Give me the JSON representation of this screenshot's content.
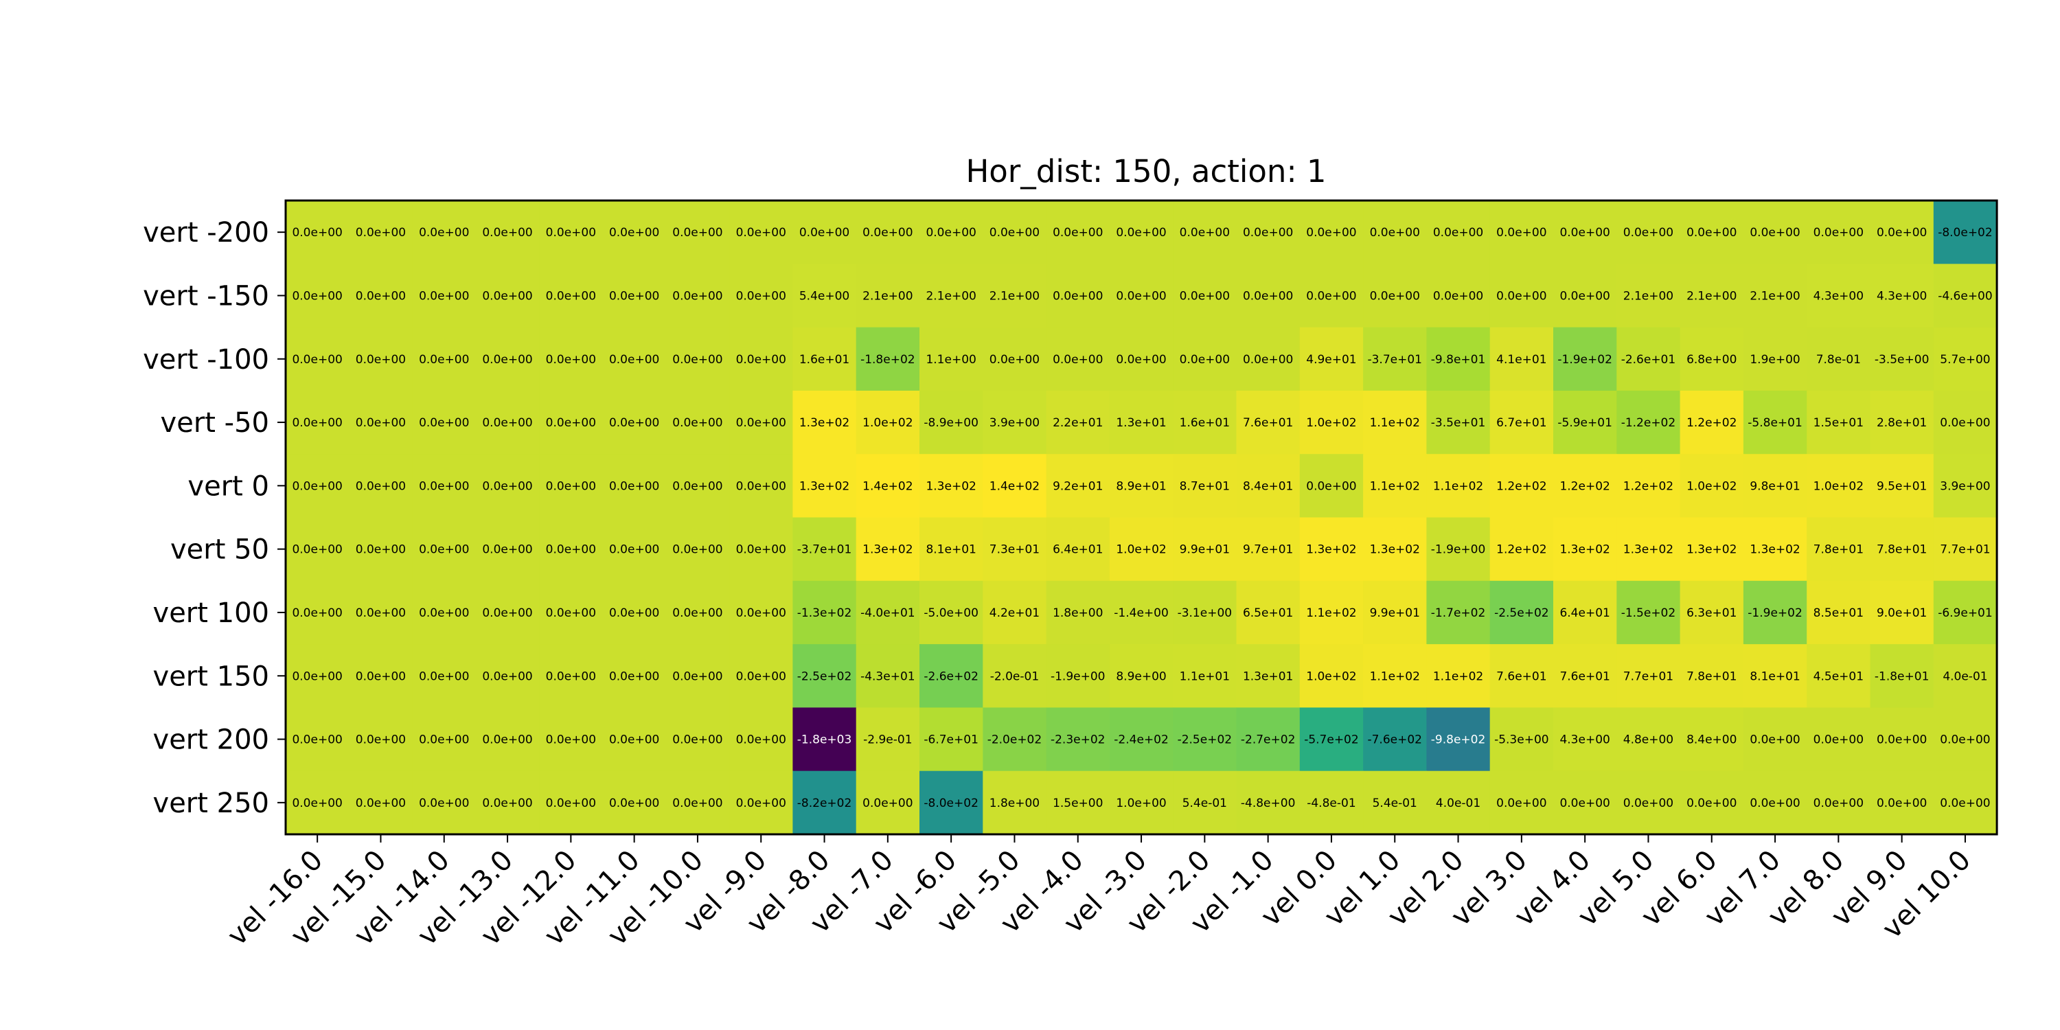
{
  "chart_data": {
    "type": "heatmap",
    "title": "Hor_dist: 150, action: 1",
    "xlabel": "",
    "ylabel": "",
    "colormap": "viridis",
    "colorbar": false,
    "grid": false,
    "x_categories": [
      "vel -16.0",
      "vel -15.0",
      "vel -14.0",
      "vel -13.0",
      "vel -12.0",
      "vel -11.0",
      "vel -10.0",
      "vel -9.0",
      "vel -8.0",
      "vel -7.0",
      "vel -6.0",
      "vel -5.0",
      "vel -4.0",
      "vel -3.0",
      "vel -2.0",
      "vel -1.0",
      "vel 0.0",
      "vel 1.0",
      "vel 2.0",
      "vel 3.0",
      "vel 4.0",
      "vel 5.0",
      "vel 6.0",
      "vel 7.0",
      "vel 8.0",
      "vel 9.0",
      "vel 10.0"
    ],
    "y_categories": [
      "vert -200",
      "vert -150",
      "vert -100",
      "vert -50",
      "vert 0",
      "vert 50",
      "vert 100",
      "vert 150",
      "vert 200",
      "vert 250"
    ],
    "values": [
      [
        0,
        0,
        0,
        0,
        0,
        0,
        0,
        0,
        0,
        0,
        0,
        0,
        0,
        0,
        0,
        0,
        0,
        0,
        0,
        0,
        0,
        0,
        0,
        0,
        0,
        0,
        -800
      ],
      [
        0,
        0,
        0,
        0,
        0,
        0,
        0,
        0,
        5.4,
        2.1,
        2.1,
        2.1,
        0,
        0,
        0,
        0,
        0,
        0,
        0,
        0,
        0,
        2.1,
        2.1,
        2.1,
        4.3,
        4.3,
        -4.6
      ],
      [
        0,
        0,
        0,
        0,
        0,
        0,
        0,
        0,
        16,
        -180,
        1.1,
        0,
        0,
        0,
        0,
        0,
        49,
        -37,
        -98,
        41,
        -190,
        -26,
        6.8,
        1.9,
        0.78,
        -3.5,
        5.7
      ],
      [
        0,
        0,
        0,
        0,
        0,
        0,
        0,
        0,
        130,
        100,
        -8.9,
        3.9,
        22,
        13,
        16,
        76,
        100,
        110,
        -35,
        67,
        -59,
        -120,
        120,
        -58,
        15,
        28,
        0
      ],
      [
        0,
        0,
        0,
        0,
        0,
        0,
        0,
        0,
        130,
        140,
        130,
        140,
        92,
        89,
        87,
        84,
        0,
        110,
        110,
        120,
        120,
        120,
        100,
        98,
        100,
        95,
        3.9
      ],
      [
        0,
        0,
        0,
        0,
        0,
        0,
        0,
        0,
        -37,
        130,
        81,
        73,
        64,
        100,
        99,
        97,
        130,
        130,
        -1.9,
        120,
        130,
        130,
        130,
        130,
        78,
        78,
        77
      ],
      [
        0,
        0,
        0,
        0,
        0,
        0,
        0,
        0,
        -130,
        -40,
        -5.0,
        42,
        1.8,
        -1.4,
        -3.1,
        65,
        110,
        99,
        -170,
        -250,
        64,
        -150,
        63,
        -190,
        85,
        90,
        -69
      ],
      [
        0,
        0,
        0,
        0,
        0,
        0,
        0,
        0,
        -250,
        -43,
        -260,
        -0.2,
        -1.9,
        8.9,
        11,
        13,
        100,
        110,
        110,
        76,
        76,
        77,
        78,
        81,
        45,
        -18,
        0.4
      ],
      [
        0,
        0,
        0,
        0,
        0,
        0,
        0,
        0,
        -1800,
        -0.29,
        -67,
        -200,
        -230,
        -240,
        -250,
        -270,
        -570,
        -760,
        -980,
        -5.3,
        4.3,
        4.8,
        8.4,
        0,
        0,
        0,
        0
      ],
      [
        0,
        0,
        0,
        0,
        0,
        0,
        0,
        0,
        -820,
        0,
        -800,
        1.8,
        1.5,
        1.0,
        0.54,
        -4.8,
        -0.48,
        0.54,
        0.4,
        0,
        0,
        0,
        0,
        0,
        0,
        0,
        0
      ]
    ],
    "cell_labels": [
      [
        "0.0e+00",
        "0.0e+00",
        "0.0e+00",
        "0.0e+00",
        "0.0e+00",
        "0.0e+00",
        "0.0e+00",
        "0.0e+00",
        "0.0e+00",
        "0.0e+00",
        "0.0e+00",
        "0.0e+00",
        "0.0e+00",
        "0.0e+00",
        "0.0e+00",
        "0.0e+00",
        "0.0e+00",
        "0.0e+00",
        "0.0e+00",
        "0.0e+00",
        "0.0e+00",
        "0.0e+00",
        "0.0e+00",
        "0.0e+00",
        "0.0e+00",
        "0.0e+00",
        "-8.0e+02"
      ],
      [
        "0.0e+00",
        "0.0e+00",
        "0.0e+00",
        "0.0e+00",
        "0.0e+00",
        "0.0e+00",
        "0.0e+00",
        "0.0e+00",
        "5.4e+00",
        "2.1e+00",
        "2.1e+00",
        "2.1e+00",
        "0.0e+00",
        "0.0e+00",
        "0.0e+00",
        "0.0e+00",
        "0.0e+00",
        "0.0e+00",
        "0.0e+00",
        "0.0e+00",
        "0.0e+00",
        "2.1e+00",
        "2.1e+00",
        "2.1e+00",
        "4.3e+00",
        "4.3e+00",
        "-4.6e+00"
      ],
      [
        "0.0e+00",
        "0.0e+00",
        "0.0e+00",
        "0.0e+00",
        "0.0e+00",
        "0.0e+00",
        "0.0e+00",
        "0.0e+00",
        "1.6e+01",
        "-1.8e+02",
        "1.1e+00",
        "0.0e+00",
        "0.0e+00",
        "0.0e+00",
        "0.0e+00",
        "0.0e+00",
        "4.9e+01",
        "-3.7e+01",
        "-9.8e+01",
        "4.1e+01",
        "-1.9e+02",
        "-2.6e+01",
        "6.8e+00",
        "1.9e+00",
        "7.8e-01",
        "-3.5e+00",
        "5.7e+00"
      ],
      [
        "0.0e+00",
        "0.0e+00",
        "0.0e+00",
        "0.0e+00",
        "0.0e+00",
        "0.0e+00",
        "0.0e+00",
        "0.0e+00",
        "1.3e+02",
        "1.0e+02",
        "-8.9e+00",
        "3.9e+00",
        "2.2e+01",
        "1.3e+01",
        "1.6e+01",
        "7.6e+01",
        "1.0e+02",
        "1.1e+02",
        "-3.5e+01",
        "6.7e+01",
        "-5.9e+01",
        "-1.2e+02",
        "1.2e+02",
        "-5.8e+01",
        "1.5e+01",
        "2.8e+01",
        "0.0e+00"
      ],
      [
        "0.0e+00",
        "0.0e+00",
        "0.0e+00",
        "0.0e+00",
        "0.0e+00",
        "0.0e+00",
        "0.0e+00",
        "0.0e+00",
        "1.3e+02",
        "1.4e+02",
        "1.3e+02",
        "1.4e+02",
        "9.2e+01",
        "8.9e+01",
        "8.7e+01",
        "8.4e+01",
        "0.0e+00",
        "1.1e+02",
        "1.1e+02",
        "1.2e+02",
        "1.2e+02",
        "1.2e+02",
        "1.0e+02",
        "9.8e+01",
        "1.0e+02",
        "9.5e+01",
        "3.9e+00"
      ],
      [
        "0.0e+00",
        "0.0e+00",
        "0.0e+00",
        "0.0e+00",
        "0.0e+00",
        "0.0e+00",
        "0.0e+00",
        "0.0e+00",
        "-3.7e+01",
        "1.3e+02",
        "8.1e+01",
        "7.3e+01",
        "6.4e+01",
        "1.0e+02",
        "9.9e+01",
        "9.7e+01",
        "1.3e+02",
        "1.3e+02",
        "-1.9e+00",
        "1.2e+02",
        "1.3e+02",
        "1.3e+02",
        "1.3e+02",
        "1.3e+02",
        "7.8e+01",
        "7.8e+01",
        "7.7e+01"
      ],
      [
        "0.0e+00",
        "0.0e+00",
        "0.0e+00",
        "0.0e+00",
        "0.0e+00",
        "0.0e+00",
        "0.0e+00",
        "0.0e+00",
        "-1.3e+02",
        "-4.0e+01",
        "-5.0e+00",
        "4.2e+01",
        "1.8e+00",
        "-1.4e+00",
        "-3.1e+00",
        "6.5e+01",
        "1.1e+02",
        "9.9e+01",
        "-1.7e+02",
        "-2.5e+02",
        "6.4e+01",
        "-1.5e+02",
        "6.3e+01",
        "-1.9e+02",
        "8.5e+01",
        "9.0e+01",
        "-6.9e+01"
      ],
      [
        "0.0e+00",
        "0.0e+00",
        "0.0e+00",
        "0.0e+00",
        "0.0e+00",
        "0.0e+00",
        "0.0e+00",
        "0.0e+00",
        "-2.5e+02",
        "-4.3e+01",
        "-2.6e+02",
        "-2.0e-01",
        "-1.9e+00",
        "8.9e+00",
        "1.1e+01",
        "1.3e+01",
        "1.0e+02",
        "1.1e+02",
        "1.1e+02",
        "7.6e+01",
        "7.6e+01",
        "7.7e+01",
        "7.8e+01",
        "8.1e+01",
        "4.5e+01",
        "-1.8e+01",
        "4.0e-01"
      ],
      [
        "0.0e+00",
        "0.0e+00",
        "0.0e+00",
        "0.0e+00",
        "0.0e+00",
        "0.0e+00",
        "0.0e+00",
        "0.0e+00",
        "-1.8e+03",
        "-2.9e-01",
        "-6.7e+01",
        "-2.0e+02",
        "-2.3e+02",
        "-2.4e+02",
        "-2.5e+02",
        "-2.7e+02",
        "-5.7e+02",
        "-7.6e+02",
        "-9.8e+02",
        "-5.3e+00",
        "4.3e+00",
        "4.8e+00",
        "8.4e+00",
        "0.0e+00",
        "0.0e+00",
        "0.0e+00",
        "0.0e+00"
      ],
      [
        "0.0e+00",
        "0.0e+00",
        "0.0e+00",
        "0.0e+00",
        "0.0e+00",
        "0.0e+00",
        "0.0e+00",
        "0.0e+00",
        "-8.2e+02",
        "0.0e+00",
        "-8.0e+02",
        "1.8e+00",
        "1.5e+00",
        "1.0e+00",
        "5.4e-01",
        "-4.8e+00",
        "-4.8e-01",
        "5.4e-01",
        "4.0e-01",
        "0.0e+00",
        "0.0e+00",
        "0.0e+00",
        "0.0e+00",
        "0.0e+00",
        "0.0e+00",
        "0.0e+00",
        "0.0e+00"
      ]
    ]
  }
}
